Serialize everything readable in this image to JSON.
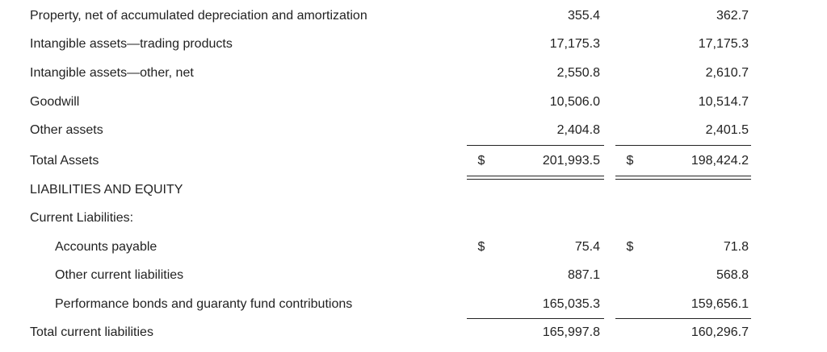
{
  "table": {
    "rows": [
      {
        "label": "Property, net of accumulated depreciation and amortization",
        "values": [
          "355.4",
          "362.7"
        ]
      },
      {
        "label": "Intangible assets—trading products",
        "values": [
          "17,175.3",
          "17,175.3"
        ]
      },
      {
        "label": "Intangible assets—other, net",
        "values": [
          "2,550.8",
          "2,610.7"
        ]
      },
      {
        "label": "Goodwill",
        "values": [
          "10,506.0",
          "10,514.7"
        ]
      },
      {
        "label": "Other assets",
        "values": [
          "2,404.8",
          "2,401.5"
        ]
      },
      {
        "label": "Total Assets",
        "currency": [
          "$",
          "$"
        ],
        "values": [
          "201,993.5",
          "198,424.2"
        ]
      },
      {
        "label": "LIABILITIES AND EQUITY"
      },
      {
        "label": "Current Liabilities:"
      },
      {
        "label": "Accounts payable",
        "currency": [
          "$",
          "$"
        ],
        "values": [
          "75.4",
          "71.8"
        ]
      },
      {
        "label": "Other current liabilities",
        "values": [
          "887.1",
          "568.8"
        ]
      },
      {
        "label": "Performance bonds and guaranty fund contributions",
        "values": [
          "165,035.3",
          "159,656.1"
        ]
      },
      {
        "label": "Total current liabilities",
        "values": [
          "165,997.8",
          "160,296.7"
        ]
      }
    ]
  }
}
